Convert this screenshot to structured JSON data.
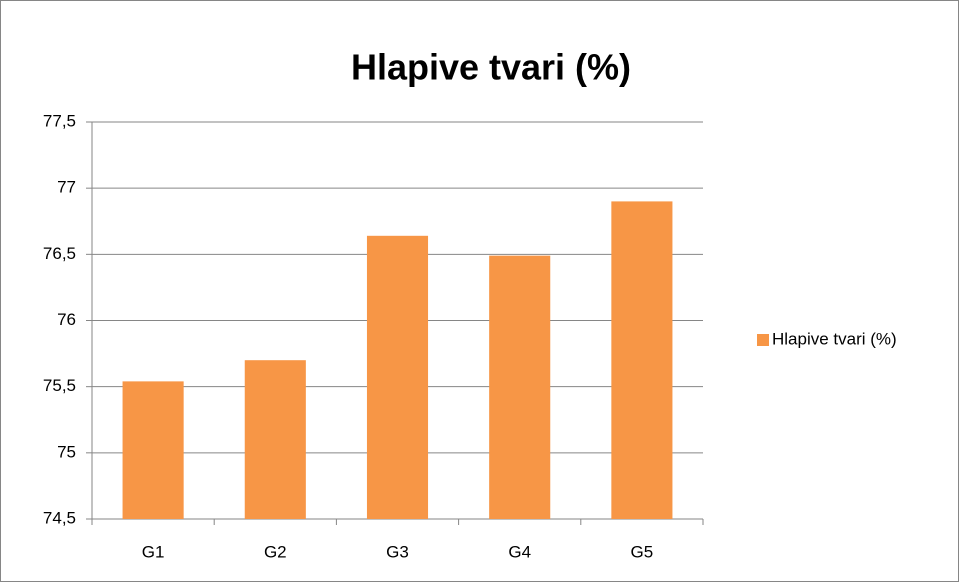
{
  "chart_data": {
    "type": "bar",
    "title": "Hlapive tvari (%)",
    "categories": [
      "G1",
      "G2",
      "G3",
      "G4",
      "G5"
    ],
    "series": [
      {
        "name": "Hlapive tvari (%)",
        "color": "#f79646",
        "values": [
          75.54,
          75.7,
          76.64,
          76.49,
          76.9
        ]
      }
    ],
    "ylim": [
      74.5,
      77.5
    ],
    "yticks": [
      {
        "value": 74.5,
        "label": "74,5"
      },
      75,
      {
        "value": 75.5,
        "label": "75,5"
      },
      76,
      {
        "value": 76.5,
        "label": "76,5"
      },
      77,
      {
        "value": 77.5,
        "label": "77,5"
      }
    ],
    "grid": true,
    "legend": "right"
  }
}
